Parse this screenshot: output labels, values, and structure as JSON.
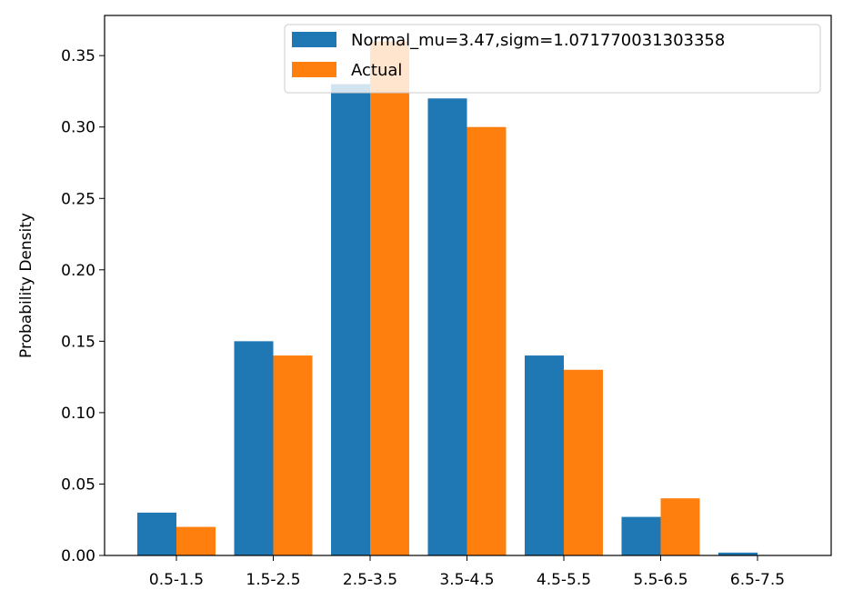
{
  "chart_data": {
    "type": "bar",
    "title": "",
    "xlabel": "",
    "ylabel": "Probability Density",
    "categories": [
      "0.5-1.5",
      "1.5-2.5",
      "2.5-3.5",
      "3.5-4.5",
      "4.5-5.5",
      "5.5-6.5",
      "6.5-7.5"
    ],
    "series": [
      {
        "name": "Normal_mu=3.47,sigm=1.071770031303358",
        "color": "#1f77b4",
        "values": [
          0.03,
          0.15,
          0.33,
          0.32,
          0.14,
          0.027,
          0.002
        ]
      },
      {
        "name": "Actual",
        "color": "#ff7f0e",
        "values": [
          0.02,
          0.14,
          0.36,
          0.3,
          0.13,
          0.04,
          0.0
        ]
      }
    ],
    "ylim": [
      0,
      0.35
    ],
    "yticks": [
      "0.00",
      "0.05",
      "0.10",
      "0.15",
      "0.20",
      "0.25",
      "0.30",
      "0.35"
    ],
    "ytick_values": [
      0,
      0.05,
      0.1,
      0.15,
      0.2,
      0.25,
      0.3,
      0.35
    ],
    "grid": false,
    "legend_position": "top-right"
  }
}
